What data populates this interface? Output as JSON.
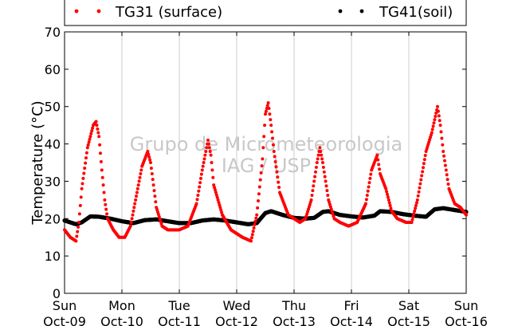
{
  "chart_data": {
    "type": "scatter",
    "ylabel": "Temperature (°C)",
    "ylim": [
      0,
      70
    ],
    "yticks": [
      0,
      10,
      20,
      30,
      40,
      50,
      60,
      70
    ],
    "xlim": [
      0,
      7
    ],
    "xtick_days": [
      "Sun",
      "Mon",
      "Tue",
      "Wed",
      "Thu",
      "Fri",
      "Sat",
      "Sun"
    ],
    "xtick_dates": [
      "Oct-09",
      "Oct-10",
      "Oct-11",
      "Oct-12",
      "Oct-13",
      "Oct-14",
      "Oct-15",
      "Oct-16"
    ],
    "grid": "vertical",
    "legend_position": "top",
    "series": [
      {
        "name": "TG31 (surface)",
        "color": "#ff0000",
        "x": [
          0,
          0.1,
          0.2,
          0.25,
          0.3,
          0.4,
          0.5,
          0.55,
          0.6,
          0.65,
          0.7,
          0.75,
          0.85,
          0.95,
          1.05,
          1.15,
          1.25,
          1.35,
          1.45,
          1.5,
          1.55,
          1.6,
          1.7,
          1.8,
          2.0,
          2.15,
          2.3,
          2.4,
          2.5,
          2.55,
          2.6,
          2.75,
          2.9,
          3.1,
          3.25,
          3.35,
          3.45,
          3.5,
          3.55,
          3.6,
          3.65,
          3.75,
          3.9,
          4.0,
          4.1,
          4.2,
          4.3,
          4.4,
          4.45,
          4.5,
          4.6,
          4.7,
          4.8,
          4.95,
          5.1,
          5.25,
          5.35,
          5.45,
          5.5,
          5.6,
          5.7,
          5.8,
          5.95,
          6.05,
          6.15,
          6.3,
          6.4,
          6.5,
          6.55,
          6.6,
          6.7,
          6.8,
          6.9,
          7.0
        ],
        "y": [
          17,
          15,
          14,
          19,
          28,
          39,
          45,
          46,
          42,
          33,
          25,
          20,
          17,
          15,
          15,
          18,
          26,
          34,
          38,
          35,
          29,
          23,
          18,
          17,
          17,
          18,
          24,
          33,
          41,
          37,
          29,
          21,
          17,
          15,
          14,
          21,
          36,
          48,
          51,
          45,
          38,
          27,
          21,
          20,
          19,
          20,
          25,
          35,
          39,
          35,
          25,
          20,
          19,
          18,
          19,
          24,
          33,
          37,
          32,
          28,
          22,
          20,
          19,
          19,
          25,
          38,
          43,
          50,
          45,
          38,
          28,
          24,
          23,
          21
        ]
      },
      {
        "name": "TG41(soil)",
        "color": "#000000",
        "x": [
          0,
          0.2,
          0.3,
          0.45,
          0.6,
          0.8,
          1.0,
          1.2,
          1.4,
          1.6,
          1.8,
          2.0,
          2.2,
          2.4,
          2.6,
          2.8,
          3.0,
          3.2,
          3.35,
          3.5,
          3.6,
          3.8,
          4.0,
          4.2,
          4.35,
          4.5,
          4.6,
          4.8,
          5.0,
          5.2,
          5.4,
          5.5,
          5.7,
          5.9,
          6.1,
          6.3,
          6.45,
          6.6,
          6.8,
          7.0
        ],
        "y": [
          19.5,
          18.5,
          19.0,
          20.6,
          20.5,
          20.0,
          19.3,
          18.8,
          19.6,
          19.8,
          19.3,
          18.8,
          18.8,
          19.5,
          19.8,
          19.5,
          19.0,
          18.5,
          18.8,
          21.5,
          22.0,
          21.0,
          20.2,
          20.0,
          20.2,
          21.8,
          22.0,
          21.0,
          20.6,
          20.3,
          20.8,
          22.0,
          21.8,
          21.2,
          20.8,
          20.5,
          22.5,
          22.8,
          22.3,
          21.8
        ]
      }
    ]
  },
  "watermark": {
    "line1": "Grupo de Micrometeorologia",
    "line2": "IAG / USP"
  }
}
